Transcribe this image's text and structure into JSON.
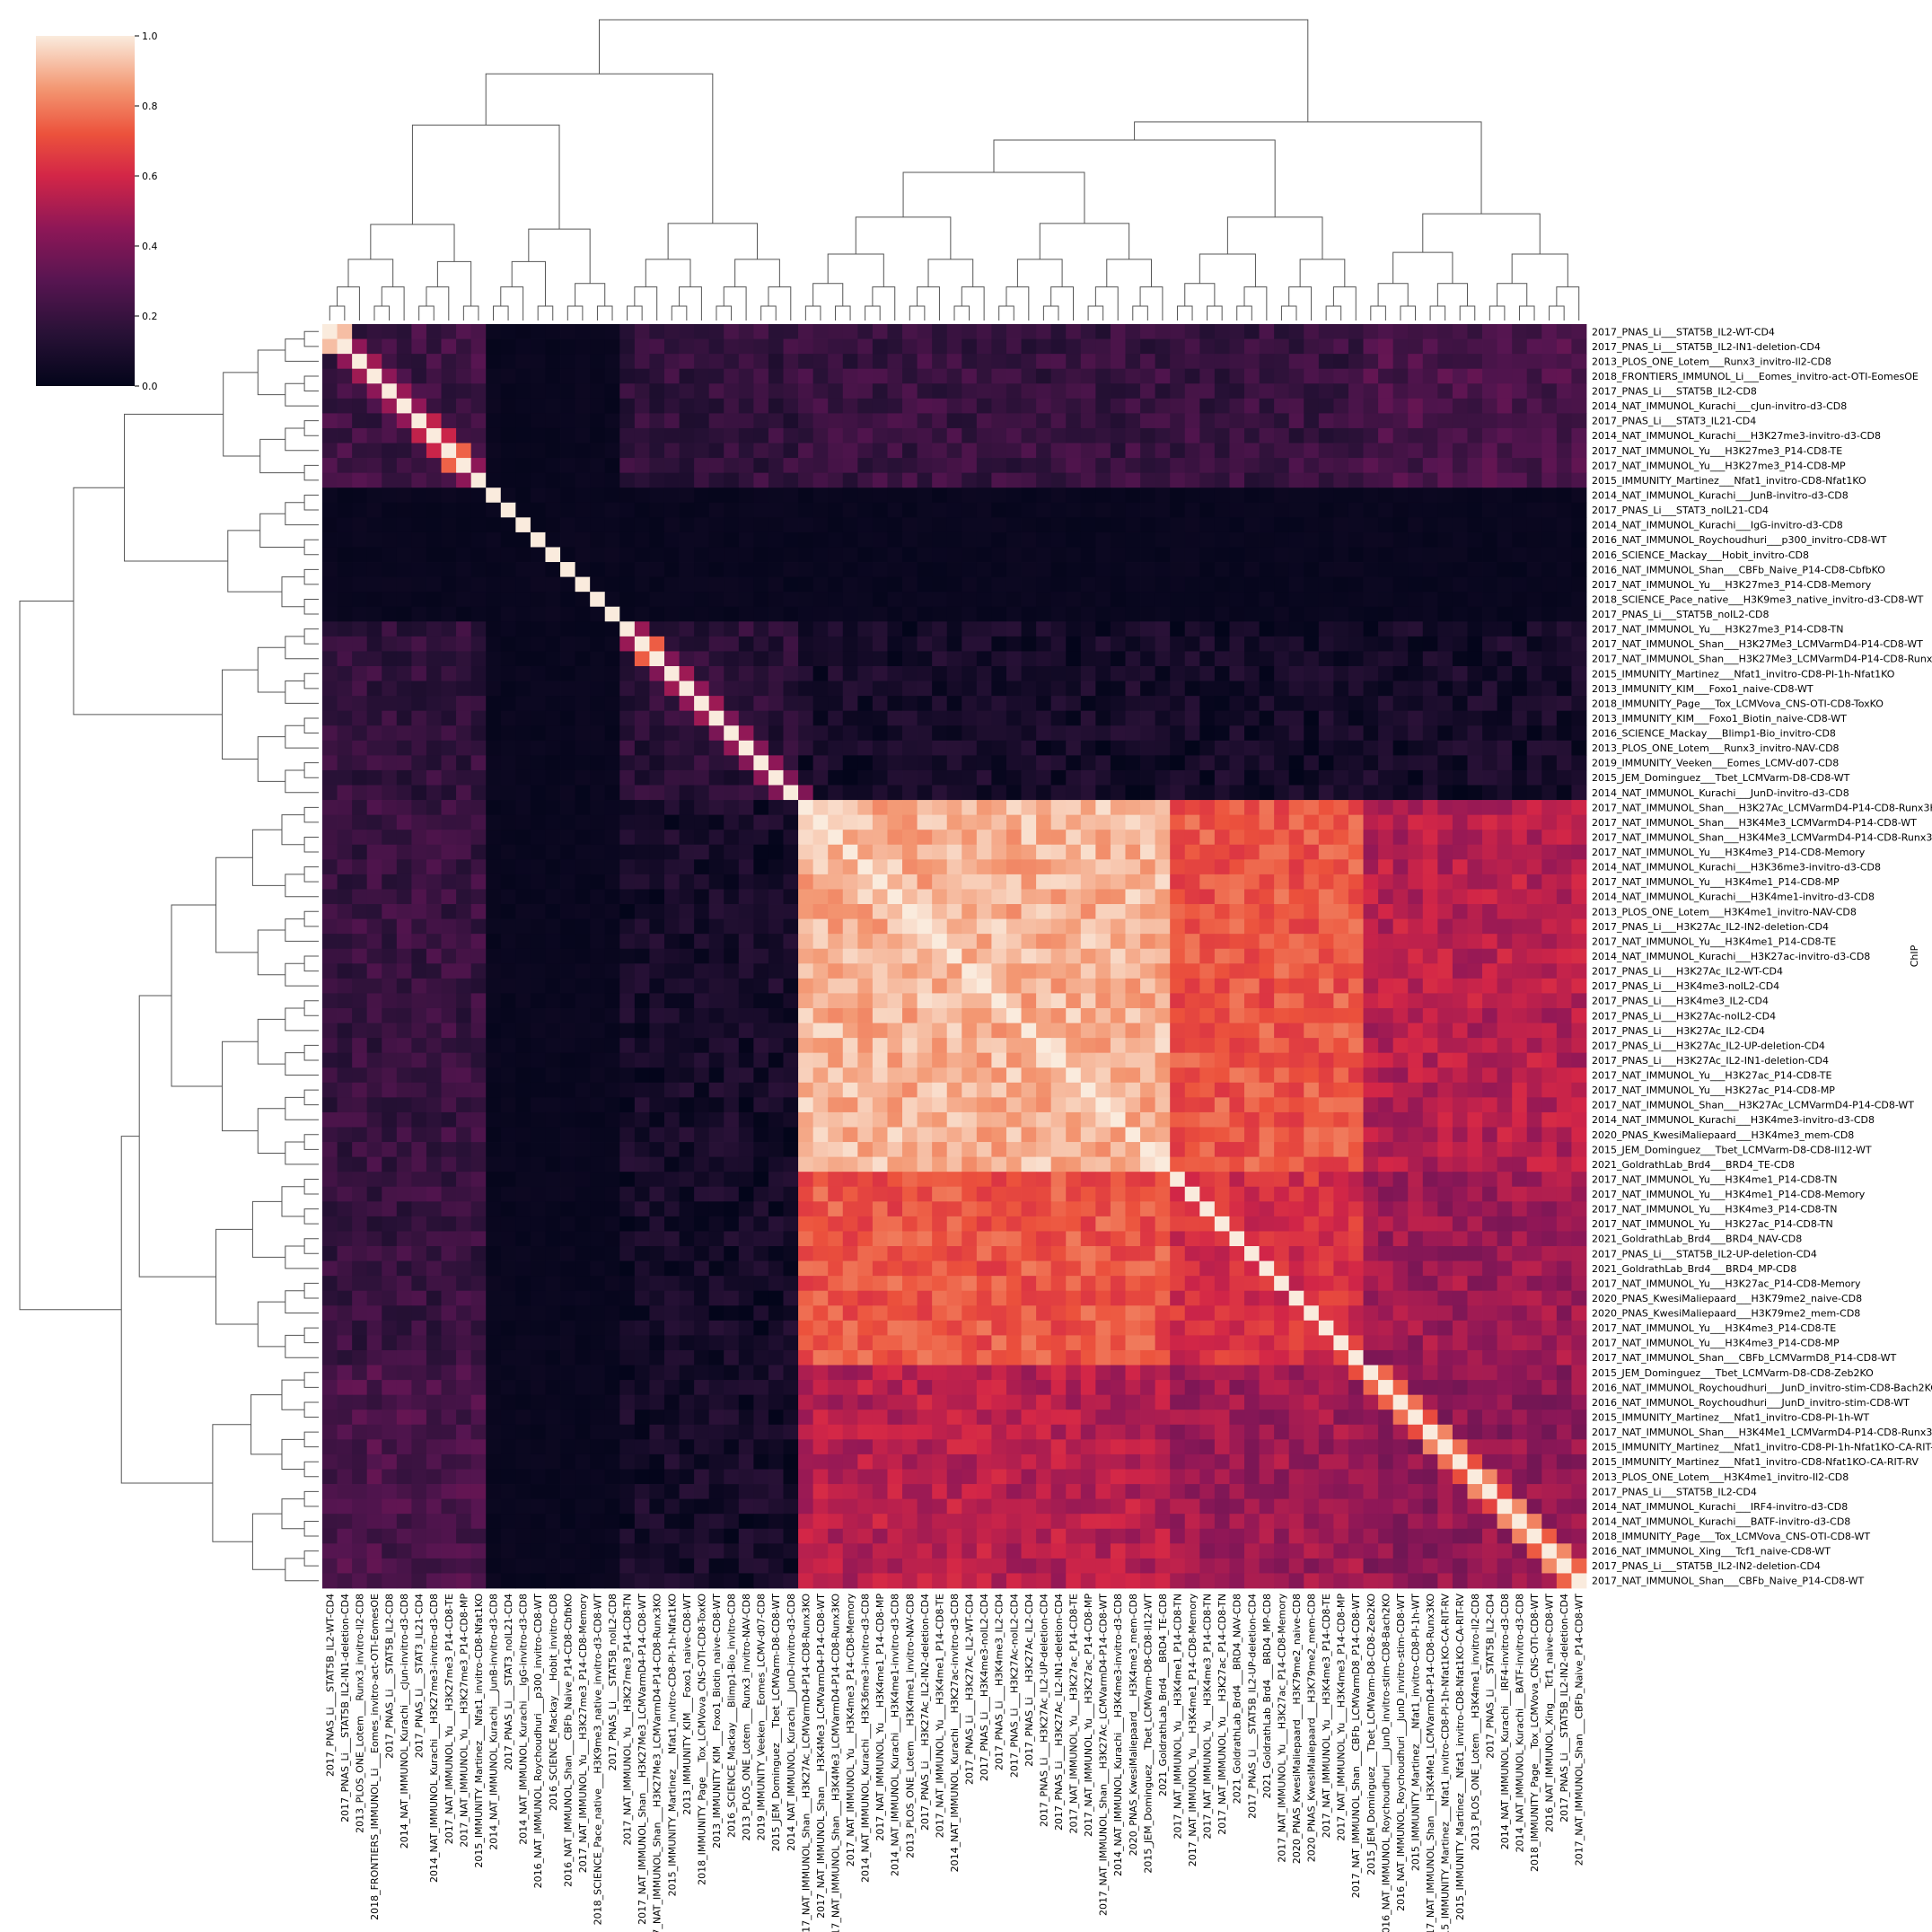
{
  "chart_data": {
    "type": "heatmap",
    "title": "",
    "xlabel": "",
    "ylabel": "ChIP",
    "colormap": "rocket",
    "vmin": 0.0,
    "vmax": 1.0,
    "colorbar_ticks": [
      "0.0",
      "0.2",
      "0.4",
      "0.6",
      "0.8",
      "1.0"
    ],
    "colorbar_placement": "top-left",
    "x_dendrogram": true,
    "y_dendrogram": true,
    "block_structure": {
      "high_similarity_block_rows": [
        32,
        56
      ],
      "medium_block_rows": [
        57,
        69
      ],
      "near_zero_rows": [
        11,
        20
      ],
      "near_zero_cols": [
        11,
        20
      ]
    },
    "labels": [
      "2017_PNAS_Li___STAT5B_IL2-WT-CD4",
      "2017_PNAS_Li___STAT5B_IL2-IN1-deletion-CD4",
      "2013_PLOS_ONE_Lotem___Runx3_invitro-Il2-CD8",
      "2018_FRONTIERS_IMMUNOL_Li___Eomes_invitro-act-OTI-EomesOE",
      "2017_PNAS_Li___STAT5B_IL2-CD8",
      "2014_NAT_IMMUNOL_Kurachi___cJun-invitro-d3-CD8",
      "2017_PNAS_Li___STAT3_IL21-CD4",
      "2014_NAT_IMMUNOL_Kurachi___H3K27me3-invitro-d3-CD8",
      "2017_NAT_IMMUNOL_Yu___H3K27me3_P14-CD8-TE",
      "2017_NAT_IMMUNOL_Yu___H3K27me3_P14-CD8-MP",
      "2015_IMMUNITY_Martinez___Nfat1_invitro-CD8-Nfat1KO",
      "2014_NAT_IMMUNOL_Kurachi___JunB-invitro-d3-CD8",
      "2017_PNAS_Li___STAT3_noIL21-CD4",
      "2014_NAT_IMMUNOL_Kurachi___IgG-invitro-d3-CD8",
      "2016_NAT_IMMUNOL_Roychoudhuri___p300_invitro-CD8-WT",
      "2016_SCIENCE_Mackay___Hobit_invitro-CD8",
      "2016_NAT_IMMUNOL_Shan___CBFb_Naive_P14-CD8-CbfbKO",
      "2017_NAT_IMMUNOL_Yu___H3K27me3_P14-CD8-Memory",
      "2018_SCIENCE_Pace_native___H3K9me3_native_invitro-d3-CD8-WT",
      "2017_PNAS_Li___STAT5B_noIL2-CD8",
      "2017_NAT_IMMUNOL_Yu___H3K27me3_P14-CD8-TN",
      "2017_NAT_IMMUNOL_Shan___H3K27Me3_LCMVarmD4-P14-CD8-WT",
      "2017_NAT_IMMUNOL_Shan___H3K27Me3_LCMVarmD4-P14-CD8-Runx3KO",
      "2015_IMMUNITY_Martinez___Nfat1_invitro-CD8-PI-1h-Nfat1KO",
      "2013_IMMUNITY_KIM___Foxo1_naive-CD8-WT",
      "2018_IMMUNITY_Page___Tox_LCMVova_CNS-OTI-CD8-ToxKO",
      "2013_IMMUNITY_KIM___Foxo1_Biotin_naive-CD8-WT",
      "2016_SCIENCE_Mackay___Blimp1-Bio_invitro-CD8",
      "2013_PLOS_ONE_Lotem___Runx3_invitro-NAV-CD8",
      "2019_IMMUNITY_Veeken___Eomes_LCMV-d07-CD8",
      "2015_JEM_Dominguez___Tbet_LCMVarm-D8-CD8-WT",
      "2014_NAT_IMMUNOL_Kurachi___JunD-invitro-d3-CD8",
      "2017_NAT_IMMUNOL_Shan___H3K27Ac_LCMVarmD4-P14-CD8-Runx3KO",
      "2017_NAT_IMMUNOL_Shan___H3K4Me3_LCMVarmD4-P14-CD8-WT",
      "2017_NAT_IMMUNOL_Shan___H3K4Me3_LCMVarmD4-P14-CD8-Runx3KO",
      "2017_NAT_IMMUNOL_Yu___H3K4me3_P14-CD8-Memory",
      "2014_NAT_IMMUNOL_Kurachi___H3K36me3-invitro-d3-CD8",
      "2017_NAT_IMMUNOL_Yu___H3K4me1_P14-CD8-MP",
      "2014_NAT_IMMUNOL_Kurachi___H3K4me1-invitro-d3-CD8",
      "2013_PLOS_ONE_Lotem___H3K4me1_invitro-NAV-CD8",
      "2017_PNAS_Li___H3K27Ac_IL2-IN2-deletion-CD4",
      "2017_NAT_IMMUNOL_Yu___H3K4me1_P14-CD8-TE",
      "2014_NAT_IMMUNOL_Kurachi___H3K27ac-invitro-d3-CD8",
      "2017_PNAS_Li___H3K27Ac_IL2-WT-CD4",
      "2017_PNAS_Li___H3K4me3-noIL2-CD4",
      "2017_PNAS_Li___H3K4me3_IL2-CD4",
      "2017_PNAS_Li___H3K27Ac-noIL2-CD4",
      "2017_PNAS_Li___H3K27Ac_IL2-CD4",
      "2017_PNAS_Li___H3K27Ac_IL2-UP-deletion-CD4",
      "2017_PNAS_Li___H3K27Ac_IL2-IN1-deletion-CD4",
      "2017_NAT_IMMUNOL_Yu___H3K27ac_P14-CD8-TE",
      "2017_NAT_IMMUNOL_Yu___H3K27ac_P14-CD8-MP",
      "2017_NAT_IMMUNOL_Shan___H3K27Ac_LCMVarmD4-P14-CD8-WT",
      "2014_NAT_IMMUNOL_Kurachi___H3K4me3-invitro-d3-CD8",
      "2020_PNAS_KwesiMaliepaard___H3K4me3_mem-CD8",
      "2015_JEM_Dominguez___Tbet_LCMVarm-D8-CD8-Il12-WT",
      "2021_GoldrathLab_Brd4___BRD4_TE-CD8",
      "2017_NAT_IMMUNOL_Yu___H3K4me1_P14-CD8-TN",
      "2017_NAT_IMMUNOL_Yu___H3K4me1_P14-CD8-Memory",
      "2017_NAT_IMMUNOL_Yu___H3K4me3_P14-CD8-TN",
      "2017_NAT_IMMUNOL_Yu___H3K27ac_P14-CD8-TN",
      "2021_GoldrathLab_Brd4___BRD4_NAV-CD8",
      "2017_PNAS_Li___STAT5B_IL2-UP-deletion-CD4",
      "2021_GoldrathLab_Brd4___BRD4_MP-CD8",
      "2017_NAT_IMMUNOL_Yu___H3K27ac_P14-CD8-Memory",
      "2020_PNAS_KwesiMaliepaard___H3K79me2_naive-CD8",
      "2020_PNAS_KwesiMaliepaard___H3K79me2_mem-CD8",
      "2017_NAT_IMMUNOL_Yu___H3K4me3_P14-CD8-TE",
      "2017_NAT_IMMUNOL_Yu___H3K4me3_P14-CD8-MP",
      "2017_NAT_IMMUNOL_Shan___CBFb_LCMVarmD8_P14-CD8-WT",
      "2015_JEM_Dominguez___Tbet_LCMVarm-D8-CD8-Zeb2KO",
      "2016_NAT_IMMUNOL_Roychoudhuri___JunD_invitro-stim-CD8-Bach2KO",
      "2016_NAT_IMMUNOL_Roychoudhuri___JunD_invitro-stim-CD8-WT",
      "2015_IMMUNITY_Martinez___Nfat1_invitro-CD8-PI-1h-WT",
      "2017_NAT_IMMUNOL_Shan___H3K4Me1_LCMVarmD4-P14-CD8-Runx3KO",
      "2015_IMMUNITY_Martinez___Nfat1_invitro-CD8-PI-1h-Nfat1KO-CA-RIT-RV",
      "2015_IMMUNITY_Martinez___Nfat1_invitro-CD8-Nfat1KO-CA-RIT-RV",
      "2013_PLOS_ONE_Lotem___H3K4me1_invitro-Il2-CD8",
      "2017_PNAS_Li___STAT5B_IL2-CD4",
      "2014_NAT_IMMUNOL_Kurachi___IRF4-invitro-d3-CD8",
      "2014_NAT_IMMUNOL_Kurachi___BATF-invitro-d3-CD8",
      "2018_IMMUNITY_Page___Tox_LCMVova_CNS-OTI-CD8-WT",
      "2016_NAT_IMMUNOL_Xing___Tcf1_naive-CD8-WT",
      "2017_PNAS_Li___STAT5B_IL2-IN2-deletion-CD4",
      "2017_NAT_IMMUNOL_Shan___CBFb_Naive_P14-CD8-WT"
    ]
  }
}
